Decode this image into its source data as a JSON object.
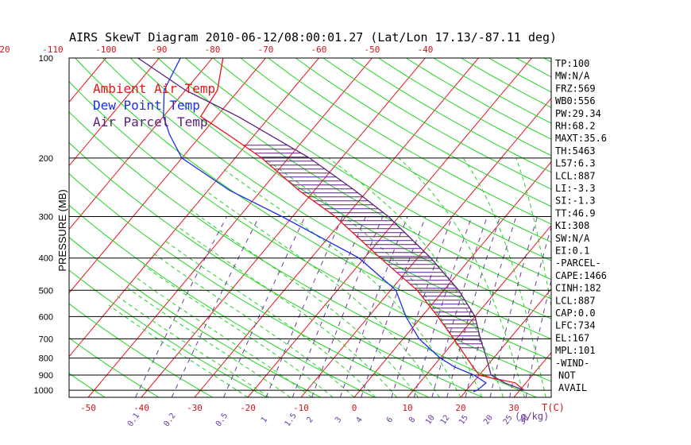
{
  "chart_data": {
    "type": "line",
    "title": "AIRS SkewT Diagram 2010-06-12/08:00:01.27 (Lat/Lon 17.13/-87.11 deg)",
    "ylabel": "PRESSURE (MB)",
    "xlabel": "T(C)",
    "mixing_ratio_unit_label": "(g/kg)",
    "y_scale": "log",
    "ylim": [
      1050,
      100
    ],
    "xlim": [
      -53,
      40
    ],
    "grid": true,
    "pressure_ticks": [
      100,
      200,
      300,
      400,
      500,
      600,
      700,
      800,
      900,
      1000
    ],
    "pressure_tick_labels": [
      "100",
      "200",
      "300",
      "400",
      "500",
      "600",
      "700",
      "800",
      "900",
      "1000"
    ],
    "bottom_temp_ticks": [
      -50,
      -40,
      -30,
      -20,
      -10,
      0,
      10,
      20,
      30
    ],
    "bottom_temp_labels": [
      "-50",
      "-40",
      "-30",
      "-20",
      "-10",
      "0",
      "10",
      "20",
      "30"
    ],
    "top_temp_ticks": [
      -120,
      -110,
      -100,
      -90,
      -80,
      -70,
      -60,
      -50,
      -40
    ],
    "top_temp_labels": [
      "-120",
      "-110",
      "-100",
      "-90",
      "-80",
      "-70",
      "-60",
      "-50",
      "-40"
    ],
    "mixing_ratio_values": [
      0.1,
      0.2,
      0.5,
      1,
      1.5,
      2,
      3,
      4,
      6,
      8,
      10,
      12,
      15,
      20,
      25,
      30
    ],
    "mixing_ratio_labels": [
      "0.1",
      "0.2",
      "0.5",
      "1",
      "1.5",
      "2",
      "3",
      "4",
      "6",
      "8",
      "10",
      "12",
      "15",
      "20",
      "25",
      "30"
    ],
    "legend": [
      {
        "label": "Ambient Air Temp",
        "color": "#e8141c"
      },
      {
        "label": "Dew Point Temp",
        "color": "#1c2ee8"
      },
      {
        "label": "Air Parcel Temp",
        "color": "#5a1f7d"
      }
    ],
    "series": [
      {
        "name": "Ambient Air Temp",
        "color": "#e8141c",
        "points": [
          [
            1000,
            30.8
          ],
          [
            950,
            28
          ],
          [
            920,
            23
          ],
          [
            900,
            20
          ],
          [
            850,
            17.5
          ],
          [
            800,
            15
          ],
          [
            700,
            9.5
          ],
          [
            600,
            3
          ],
          [
            500,
            -5
          ],
          [
            400,
            -17
          ],
          [
            300,
            -32
          ],
          [
            250,
            -43
          ],
          [
            200,
            -55
          ],
          [
            170,
            -65
          ],
          [
            150,
            -73
          ],
          [
            125,
            -74
          ],
          [
            100,
            -78
          ]
        ]
      },
      {
        "name": "Dew Point Temp",
        "color": "#1c2ee8",
        "points": [
          [
            1010,
            21.5
          ],
          [
            1000,
            22
          ],
          [
            950,
            22.5
          ],
          [
            900,
            19
          ],
          [
            850,
            14
          ],
          [
            800,
            10
          ],
          [
            700,
            3
          ],
          [
            600,
            -3
          ],
          [
            500,
            -9
          ],
          [
            400,
            -21
          ],
          [
            300,
            -42
          ],
          [
            250,
            -56
          ],
          [
            200,
            -70
          ],
          [
            170,
            -76
          ],
          [
            150,
            -80
          ],
          [
            125,
            -84
          ],
          [
            100,
            -86
          ]
        ]
      },
      {
        "name": "Air Parcel Temp",
        "color": "#5a1f7d",
        "points": [
          [
            1000,
            30.8
          ],
          [
            950,
            26
          ],
          [
            900,
            22.2
          ],
          [
            850,
            20.5
          ],
          [
            800,
            18.7
          ],
          [
            700,
            14.5
          ],
          [
            600,
            10
          ],
          [
            500,
            2.8
          ],
          [
            400,
            -7.5
          ],
          [
            300,
            -22
          ],
          [
            250,
            -32.5
          ],
          [
            200,
            -46
          ],
          [
            150,
            -66
          ],
          [
            125,
            -80
          ],
          [
            100,
            -94
          ]
        ]
      }
    ]
  },
  "indices": [
    {
      "label": "TP",
      "value": "100"
    },
    {
      "label": "MW",
      "value": "N/A"
    },
    {
      "label": "FRZ",
      "value": "569"
    },
    {
      "label": "WB0",
      "value": "556"
    },
    {
      "label": "PW",
      "value": "29.34"
    },
    {
      "label": "RH",
      "value": "68.2"
    },
    {
      "label": "MAXT",
      "value": "35.6"
    },
    {
      "label": "TH",
      "value": "5463"
    },
    {
      "label": "L57",
      "value": "6.3"
    },
    {
      "label": "LCL",
      "value": "887"
    },
    {
      "label": "LI",
      "value": "-3.3"
    },
    {
      "label": "SI",
      "value": "-1.3"
    },
    {
      "label": "TT",
      "value": "46.9"
    },
    {
      "label": "KI",
      "value": "308"
    },
    {
      "label": "SW",
      "value": "N/A"
    },
    {
      "label": "EI",
      "value": "0.1"
    }
  ],
  "parcel_header": "-PARCEL-",
  "parcel": [
    {
      "label": "CAPE",
      "value": "1466"
    },
    {
      "label": "CINH",
      "value": "182"
    },
    {
      "label": "LCL",
      "value": "887"
    },
    {
      "label": "CAP",
      "value": "0.0"
    },
    {
      "label": "LFC",
      "value": "734"
    },
    {
      "label": "EL",
      "value": "167"
    },
    {
      "label": "MPL",
      "value": "101"
    }
  ],
  "wind_header": "-WIND-",
  "wind_lines": [
    "NOT",
    "AVAIL"
  ],
  "colors": {
    "isotherm": "#e8141c",
    "dry_adiabat": "#22d322",
    "moist_adiabat": "#22d322",
    "mixing_ratio": "#6c3aa0",
    "isobar": "#000000",
    "axis_labels": "#d1141c",
    "mixing_labels": "#6c3aa0"
  }
}
